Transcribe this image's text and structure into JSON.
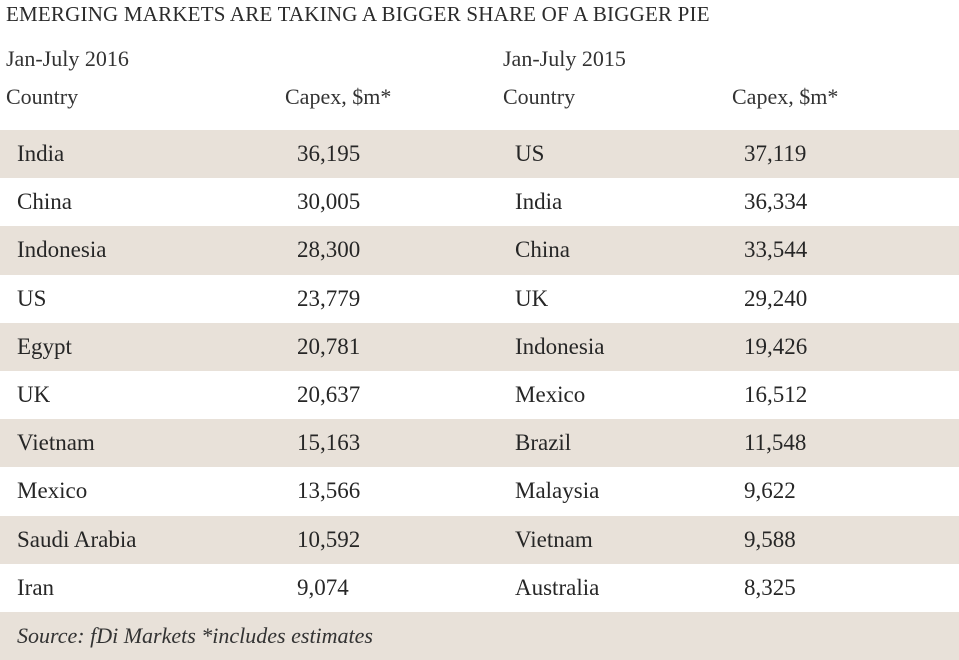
{
  "title": "EMERGING MARKETS ARE TAKING A BIGGER SHARE OF A BIGGER PIE",
  "left_period": "Jan-July 2016",
  "right_period": "Jan-July 2015",
  "col_country": "Country",
  "col_capex": "Capex, $m*",
  "source": "Source: fDi Markets *includes estimates",
  "row_shading": "#e8e1d9",
  "chart_data": {
    "type": "table",
    "title": "EMERGING MARKETS ARE TAKING A BIGGER SHARE OF A BIGGER PIE",
    "tables": [
      {
        "period": "Jan-July 2016",
        "columns": [
          "Country",
          "Capex, $m*"
        ],
        "rows": [
          [
            "India",
            "36,195"
          ],
          [
            "China",
            "30,005"
          ],
          [
            "Indonesia",
            "28,300"
          ],
          [
            "US",
            "23,779"
          ],
          [
            "Egypt",
            "20,781"
          ],
          [
            "UK",
            "20,637"
          ],
          [
            "Vietnam",
            "15,163"
          ],
          [
            "Mexico",
            "13,566"
          ],
          [
            "Saudi Arabia",
            "10,592"
          ],
          [
            "Iran",
            "9,074"
          ]
        ]
      },
      {
        "period": "Jan-July 2015",
        "columns": [
          "Country",
          "Capex, $m*"
        ],
        "rows": [
          [
            "US",
            "37,119"
          ],
          [
            "India",
            "36,334"
          ],
          [
            "China",
            "33,544"
          ],
          [
            "UK",
            "29,240"
          ],
          [
            "Indonesia",
            "19,426"
          ],
          [
            "Mexico",
            "16,512"
          ],
          [
            "Brazil",
            "11,548"
          ],
          [
            "Malaysia",
            "9,622"
          ],
          [
            "Vietnam",
            "9,588"
          ],
          [
            "Australia",
            "8,325"
          ]
        ]
      }
    ]
  }
}
